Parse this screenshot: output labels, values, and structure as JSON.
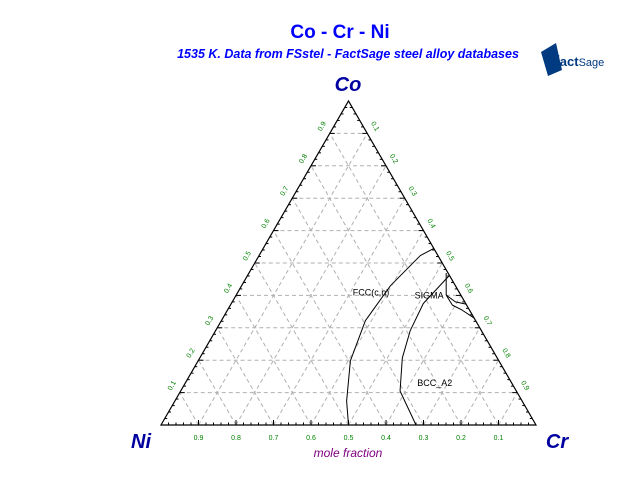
{
  "chart_data": {
    "type": "ternary",
    "title": "Co - Cr - Ni",
    "subtitle": "1535 K.  Data from FSstel - FactSage steel alloy databases",
    "axis_label": "mole fraction",
    "vertices": {
      "top": "Co",
      "left": "Ni",
      "right": "Cr"
    },
    "tick_labels": [
      "0.1",
      "0.2",
      "0.3",
      "0.4",
      "0.5",
      "0.6",
      "0.7",
      "0.8",
      "0.9"
    ],
    "grid": true,
    "grid_step": 0.1,
    "phase_labels": [
      {
        "text": "FCC(c,n)",
        "Cr": 0.36,
        "Co": 0.4
      },
      {
        "text": "SIGMA",
        "Cr": 0.52,
        "Co": 0.39
      },
      {
        "text": "BCC_A2",
        "Cr": 0.67,
        "Co": 0.12
      }
    ],
    "curves": [
      {
        "points": [
          [
            0.5,
            0
          ],
          [
            0.458,
            0.074
          ],
          [
            0.406,
            0.198
          ],
          [
            0.384,
            0.322
          ],
          [
            0.397,
            0.43
          ],
          [
            0.43,
            0.523
          ],
          [
            0.455,
            0.545
          ]
        ]
      },
      {
        "points": [
          [
            0.68,
            0
          ],
          [
            0.585,
            0.105
          ],
          [
            0.54,
            0.207
          ],
          [
            0.519,
            0.291
          ],
          [
            0.512,
            0.375
          ],
          [
            0.538,
            0.461
          ]
        ]
      },
      {
        "points": [
          [
            0.526,
            0.469
          ],
          [
            0.56,
            0.401
          ]
        ]
      },
      {
        "points": [
          [
            0.56,
            0.401
          ],
          [
            0.592,
            0.37
          ],
          [
            0.625,
            0.355
          ],
          [
            0.67,
            0.33
          ]
        ]
      },
      {
        "points": [
          [
            0.56,
            0.401
          ],
          [
            0.595,
            0.38
          ],
          [
            0.627,
            0.373
          ]
        ]
      }
    ],
    "colors": {
      "title": "#0000ff",
      "vertex": "#0000a0",
      "ticks": "#008000",
      "axis_label": "#800080",
      "grid": "#b0b0b0"
    }
  },
  "logo": {
    "text": "FactSage"
  }
}
